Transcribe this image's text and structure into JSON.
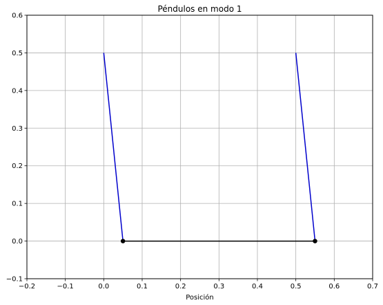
{
  "chart_data": {
    "type": "line",
    "title": "Péndulos en modo 1",
    "xlabel": "Posición",
    "ylabel": "",
    "xlim": [
      -0.2,
      0.7
    ],
    "ylim": [
      -0.1,
      0.6
    ],
    "x_ticks": [
      "−0.2",
      "−0.1",
      "0.0",
      "0.1",
      "0.2",
      "0.3",
      "0.4",
      "0.5",
      "0.6",
      "0.7"
    ],
    "x_tick_values": [
      -0.2,
      -0.1,
      0.0,
      0.1,
      0.2,
      0.3,
      0.4,
      0.5,
      0.6,
      0.7
    ],
    "y_ticks": [
      "−0.1",
      "0.0",
      "0.1",
      "0.2",
      "0.3",
      "0.4",
      "0.5",
      "0.6"
    ],
    "y_tick_values": [
      -0.1,
      0.0,
      0.1,
      0.2,
      0.3,
      0.4,
      0.5,
      0.6
    ],
    "grid": true,
    "series": [
      {
        "role": "pendulum-rod-1",
        "color": "#0000cc",
        "x": [
          0.0,
          0.05
        ],
        "y": [
          0.5,
          0.0
        ]
      },
      {
        "role": "pendulum-rod-2",
        "color": "#0000cc",
        "x": [
          0.5,
          0.55
        ],
        "y": [
          0.5,
          0.0
        ]
      },
      {
        "role": "spring",
        "color": "#000000",
        "x": [
          0.05,
          0.55
        ],
        "y": [
          0.0,
          0.0
        ]
      }
    ],
    "masses": {
      "color": "#000000",
      "points": [
        {
          "x": 0.05,
          "y": 0.0
        },
        {
          "x": 0.55,
          "y": 0.0
        }
      ]
    }
  }
}
